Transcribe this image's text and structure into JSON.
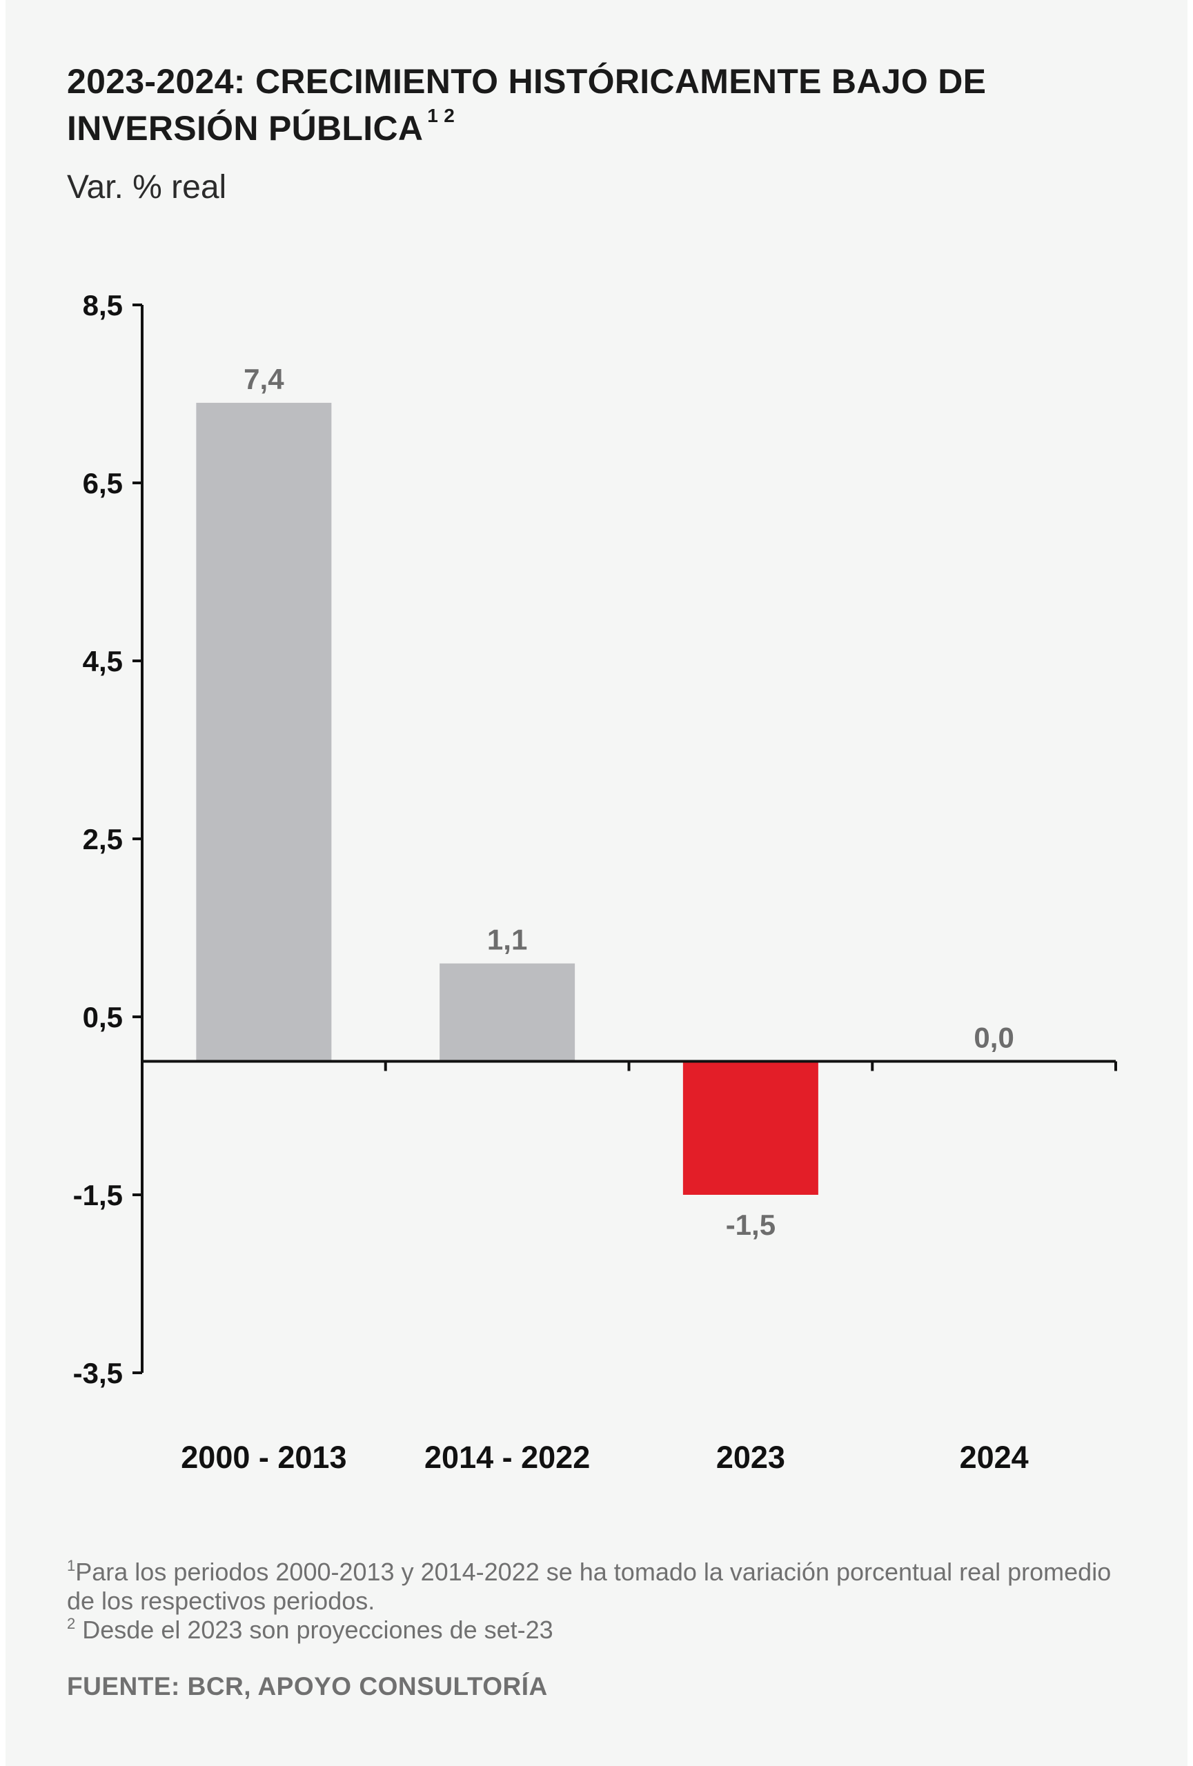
{
  "title": {
    "text": "2023-2024: CRECIMIENTO HISTÓRICAMENTE BAJO DE INVERSIÓN PÚBLICA",
    "superscript": "1 2"
  },
  "subtitle": "Var. % real",
  "footnotes": [
    {
      "marker": "1",
      "text": "Para los periodos 2000-2013 y 2014-2022 se ha tomado la variación porcentual real promedio de los respectivos periodos."
    },
    {
      "marker": "2",
      "text": " Desde el 2023 son proyecciones de set-23"
    }
  ],
  "source": "FUENTE: BCR, APOYO CONSULTORÍA",
  "colors": {
    "bar_default": "#bcbdc0",
    "bar_highlight": "#e31e28",
    "axis": "#111111",
    "value_label": "#6d6d6d"
  },
  "chart_data": {
    "type": "bar",
    "categories": [
      "2000 - 2013",
      "2014 - 2022",
      "2023",
      "2024"
    ],
    "values": [
      7.4,
      1.1,
      -1.5,
      0.0
    ],
    "value_labels": [
      "7,4",
      "1,1",
      "-1,5",
      "0,0"
    ],
    "highlight_index": 2,
    "yticks": [
      8.5,
      6.5,
      4.5,
      2.5,
      0.5,
      -1.5,
      -3.5
    ],
    "ytick_labels": [
      "8,5",
      "6,5",
      "4,5",
      "2,5",
      "0,5",
      "-1,5",
      "-3,5"
    ],
    "ylim": [
      -3.5,
      8.5
    ],
    "grid": false
  }
}
